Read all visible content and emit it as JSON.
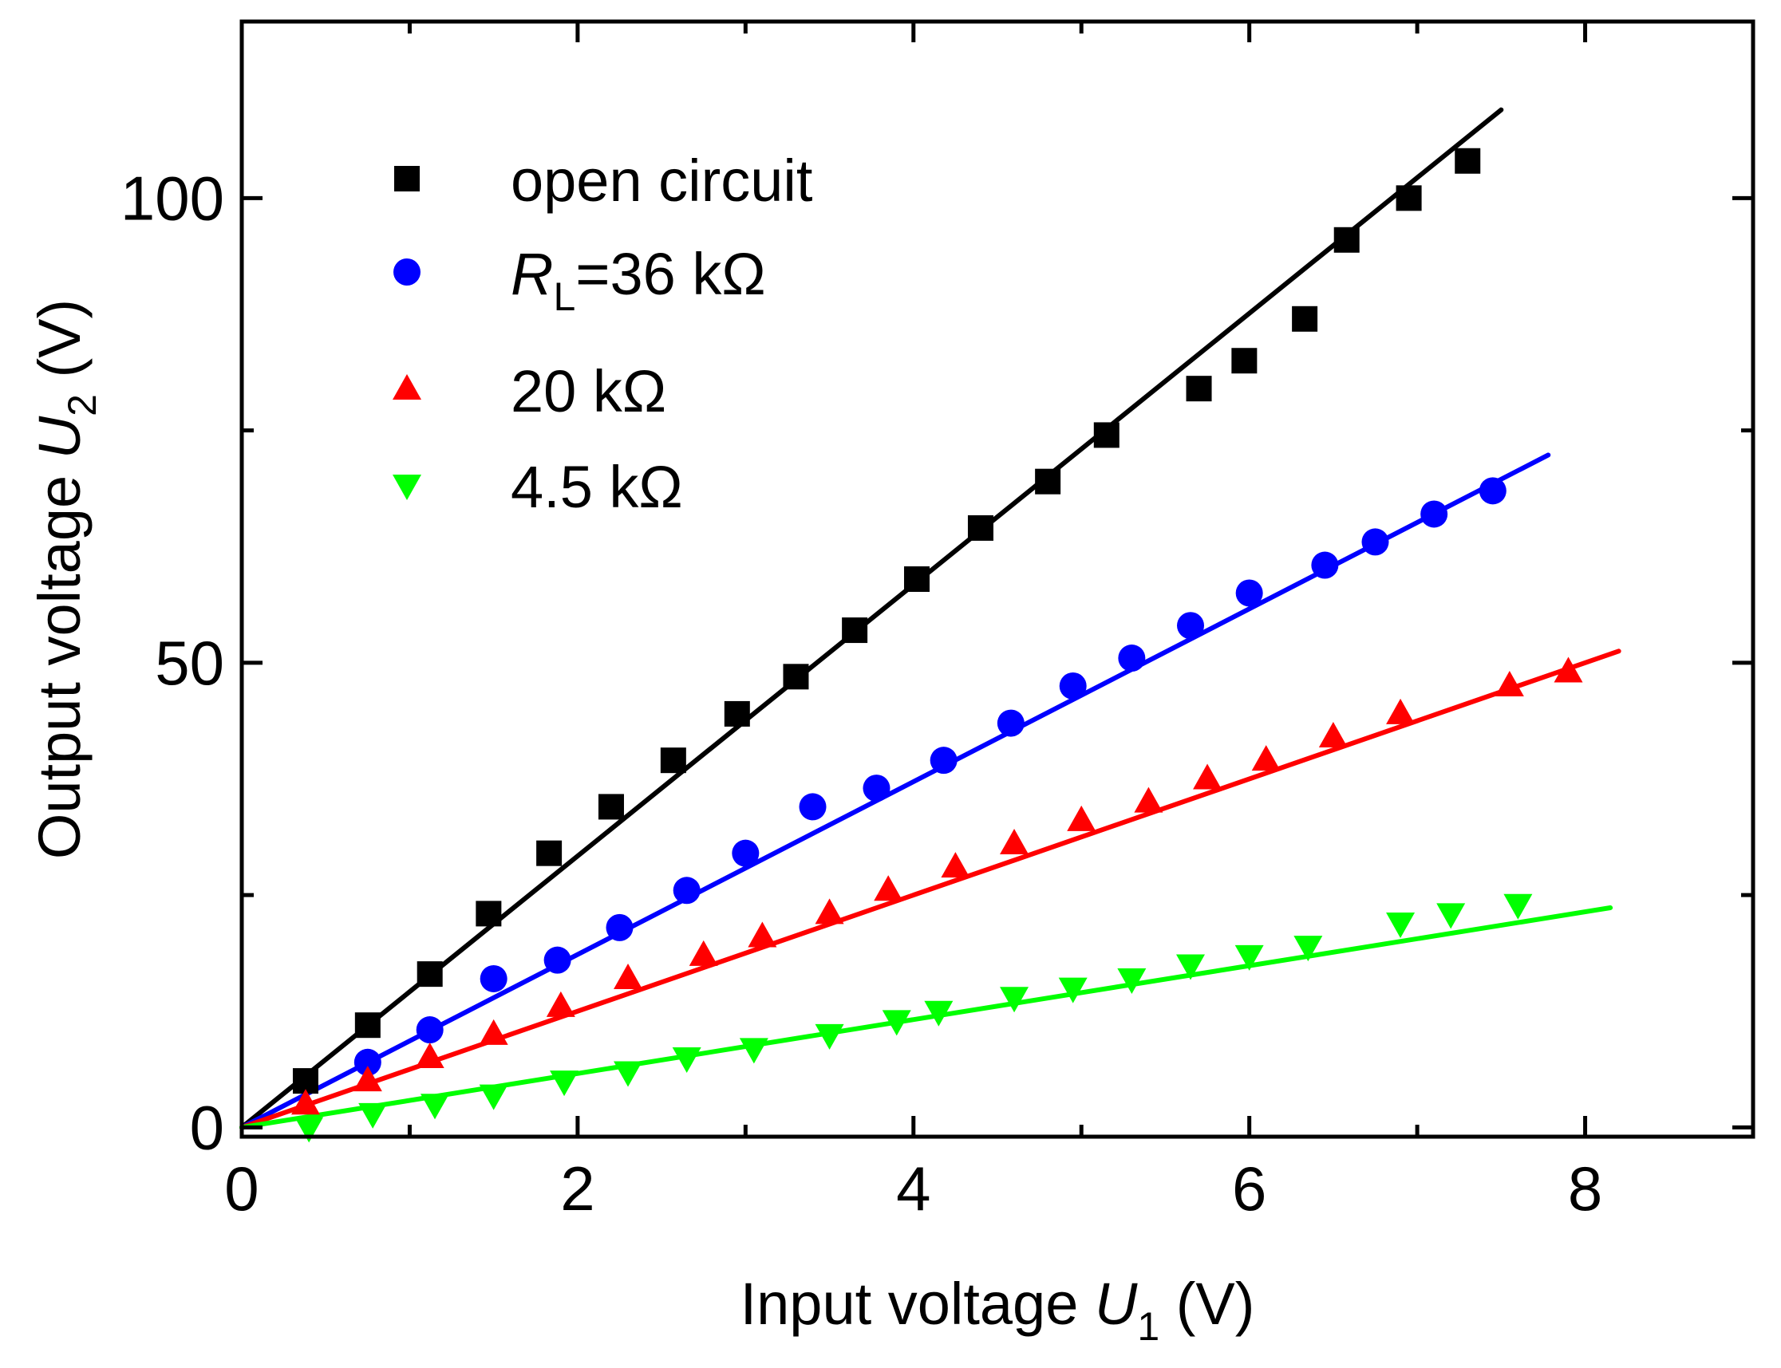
{
  "chart_data": {
    "type": "scatter",
    "title": "",
    "xlabel": {
      "prefix": "Input voltage ",
      "symbol": "U",
      "subscript": "1",
      "suffix": " (V)"
    },
    "ylabel": {
      "prefix": "Output voltage ",
      "symbol": "U",
      "subscript": "2",
      "suffix": " (V)"
    },
    "xlim": [
      0,
      9
    ],
    "ylim": [
      -1,
      119
    ],
    "xticks": [
      0,
      2,
      4,
      6,
      8
    ],
    "xtick_labels": [
      "0",
      "2",
      "4",
      "6",
      "8"
    ],
    "xminor_ticks": [
      1,
      3,
      5,
      7,
      9
    ],
    "yticks": [
      0,
      50,
      100
    ],
    "ytick_labels": [
      "0",
      "50",
      "100"
    ],
    "yminor_ticks": [
      25,
      75
    ],
    "grid": false,
    "legend_position": "top-left",
    "series": [
      {
        "name": "open circuit",
        "legend": {
          "text": "open circuit"
        },
        "marker": "square",
        "color": "#000000",
        "fit": {
          "slope": 14.6,
          "x_end": 7.5
        },
        "x": [
          0.38,
          0.75,
          1.12,
          1.47,
          1.83,
          2.2,
          2.57,
          2.95,
          3.3,
          3.65,
          4.02,
          4.4,
          4.8,
          5.15,
          5.7,
          5.97,
          6.33,
          6.58,
          6.95,
          7.3
        ],
        "y": [
          5.0,
          11.0,
          16.5,
          23.0,
          29.5,
          34.5,
          39.5,
          44.5,
          48.5,
          53.5,
          59.0,
          64.5,
          69.5,
          74.5,
          79.5,
          82.5,
          87.0,
          95.5,
          100.0,
          104.0
        ]
      },
      {
        "name": "RL=36 kΩ",
        "legend": {
          "symbol": "R",
          "subscript": "L",
          "text": "=36 kΩ"
        },
        "marker": "circle",
        "color": "#0000ff",
        "fit": {
          "slope": 9.3,
          "x_end": 7.78
        },
        "x": [
          0.75,
          1.12,
          1.5,
          1.88,
          2.25,
          2.65,
          3.0,
          3.4,
          3.78,
          4.18,
          4.58,
          4.95,
          5.3,
          5.65,
          6.0,
          6.45,
          6.75,
          7.1,
          7.45
        ],
        "y": [
          7.0,
          10.5,
          16.0,
          18.0,
          21.5,
          25.5,
          29.5,
          34.5,
          36.5,
          39.5,
          43.5,
          47.5,
          50.5,
          54.0,
          57.5,
          60.5,
          63.0,
          66.0,
          68.5
        ]
      },
      {
        "name": "20 kΩ",
        "legend": {
          "text": "20 kΩ"
        },
        "marker": "triangle-up",
        "color": "#ff0000",
        "fit": {
          "slope": 6.25,
          "x_end": 8.2
        },
        "x": [
          0.38,
          0.75,
          1.12,
          1.5,
          1.9,
          2.3,
          2.75,
          3.1,
          3.5,
          3.85,
          4.25,
          4.6,
          5.0,
          5.4,
          5.75,
          6.1,
          6.5,
          6.9,
          7.55,
          7.9
        ],
        "y": [
          2.5,
          5.0,
          7.5,
          10.0,
          13.0,
          16.0,
          18.5,
          20.5,
          23.0,
          25.5,
          28.0,
          30.5,
          33.0,
          35.0,
          37.5,
          39.5,
          42.0,
          44.5,
          47.5,
          49.0
        ]
      },
      {
        "name": "4.5 kΩ",
        "legend": {
          "text": "4.5 kΩ"
        },
        "marker": "triangle-down",
        "color": "#00ff00",
        "fit": {
          "slope": 2.9,
          "x_end": 8.15
        },
        "x": [
          0.4,
          0.78,
          1.15,
          1.5,
          1.92,
          2.3,
          2.65,
          3.05,
          3.5,
          3.9,
          4.15,
          4.6,
          4.95,
          5.3,
          5.65,
          6.0,
          6.35,
          6.9,
          7.2,
          7.6
        ],
        "y": [
          0.0,
          1.5,
          2.5,
          3.5,
          5.0,
          6.0,
          7.5,
          8.5,
          10.0,
          11.5,
          12.5,
          14.0,
          15.0,
          16.0,
          17.5,
          18.5,
          19.5,
          22.0,
          23.0,
          24.0
        ]
      }
    ]
  }
}
